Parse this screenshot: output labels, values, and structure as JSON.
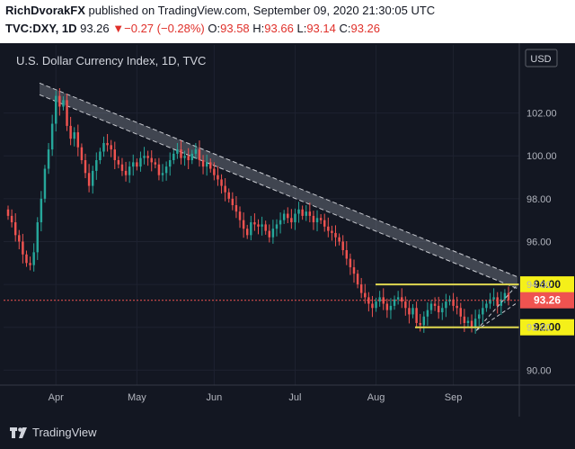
{
  "header": {
    "author": "RichDvorakFX",
    "published_text": " published on TradingView.com, September 09, 2020 21:30:05 UTC",
    "symbol": "TVC:DXY, 1D",
    "last": "93.26",
    "change_arrow": "▼",
    "change": "−0.27 (−0.28%)",
    "open_label": "O:",
    "open": "93.58",
    "high_label": "H:",
    "high": "93.66",
    "low_label": "L:",
    "low": "93.14",
    "close_label": "C:",
    "close": "93.26"
  },
  "footer": {
    "brand": "TradingView"
  },
  "colors": {
    "background": "#131722",
    "up": "#26a69a",
    "down": "#ef5350",
    "support_line": "#e0d850",
    "label_fill": "#f5f019",
    "price_label": "#ef5350"
  },
  "chart_data": {
    "type": "candlestick",
    "title": "U.S. Dollar Currency Index, 1D, TVC",
    "currency": "USD",
    "x_ticks": [
      "Apr",
      "May",
      "Jun",
      "Jul",
      "Aug",
      "Sep"
    ],
    "y_ticks": [
      "90.00",
      "92.00",
      "94.00",
      "96.00",
      "98.00",
      "100.00",
      "102.00"
    ],
    "ylim": [
      89.3,
      104.0
    ],
    "last_price": 93.26,
    "last_price_label": "93.26",
    "level_labels": [
      "94.00",
      "92.00"
    ],
    "levels": [
      94.0,
      92.0
    ],
    "closes": [
      97.2,
      96.9,
      96.3,
      96.0,
      95.4,
      95.0,
      94.9,
      95.5,
      96.9,
      98.0,
      99.4,
      100.3,
      101.5,
      102.8,
      102.3,
      102.6,
      101.4,
      100.8,
      101.1,
      100.4,
      99.8,
      99.2,
      98.6,
      99.3,
      99.8,
      100.2,
      100.6,
      100.5,
      100.3,
      99.8,
      99.6,
      99.3,
      99.1,
      99.5,
      99.7,
      99.5,
      99.9,
      100.0,
      99.9,
      99.7,
      99.6,
      99.1,
      99.2,
      99.5,
      99.8,
      100.1,
      100.3,
      99.9,
      100.0,
      99.8,
      100.1,
      100.3,
      99.8,
      99.5,
      99.7,
      99.4,
      99.1,
      98.9,
      98.6,
      98.3,
      98.0,
      97.7,
      97.4,
      97.0,
      96.6,
      96.3,
      96.9,
      96.8,
      96.7,
      96.8,
      96.5,
      96.2,
      96.6,
      96.8,
      97.0,
      97.3,
      97.1,
      96.9,
      97.3,
      97.5,
      97.2,
      97.4,
      97.2,
      96.9,
      97.1,
      97.0,
      96.7,
      96.5,
      96.4,
      96.2,
      96.0,
      95.6,
      95.2,
      94.8,
      94.5,
      94.0,
      93.6,
      93.4,
      93.1,
      92.9,
      93.2,
      93.4,
      93.1,
      92.8,
      93.0,
      93.3,
      93.4,
      93.2,
      92.9,
      92.6,
      92.9,
      92.2,
      92.1,
      92.5,
      92.8,
      93.1,
      93.0,
      92.7,
      92.9,
      93.2,
      93.3,
      93.0,
      92.9,
      92.5,
      92.2,
      92.3,
      92.0,
      92.4,
      92.6,
      92.9,
      93.1,
      93.3,
      93.4,
      93.0,
      93.3,
      93.6,
      93.26
    ]
  }
}
